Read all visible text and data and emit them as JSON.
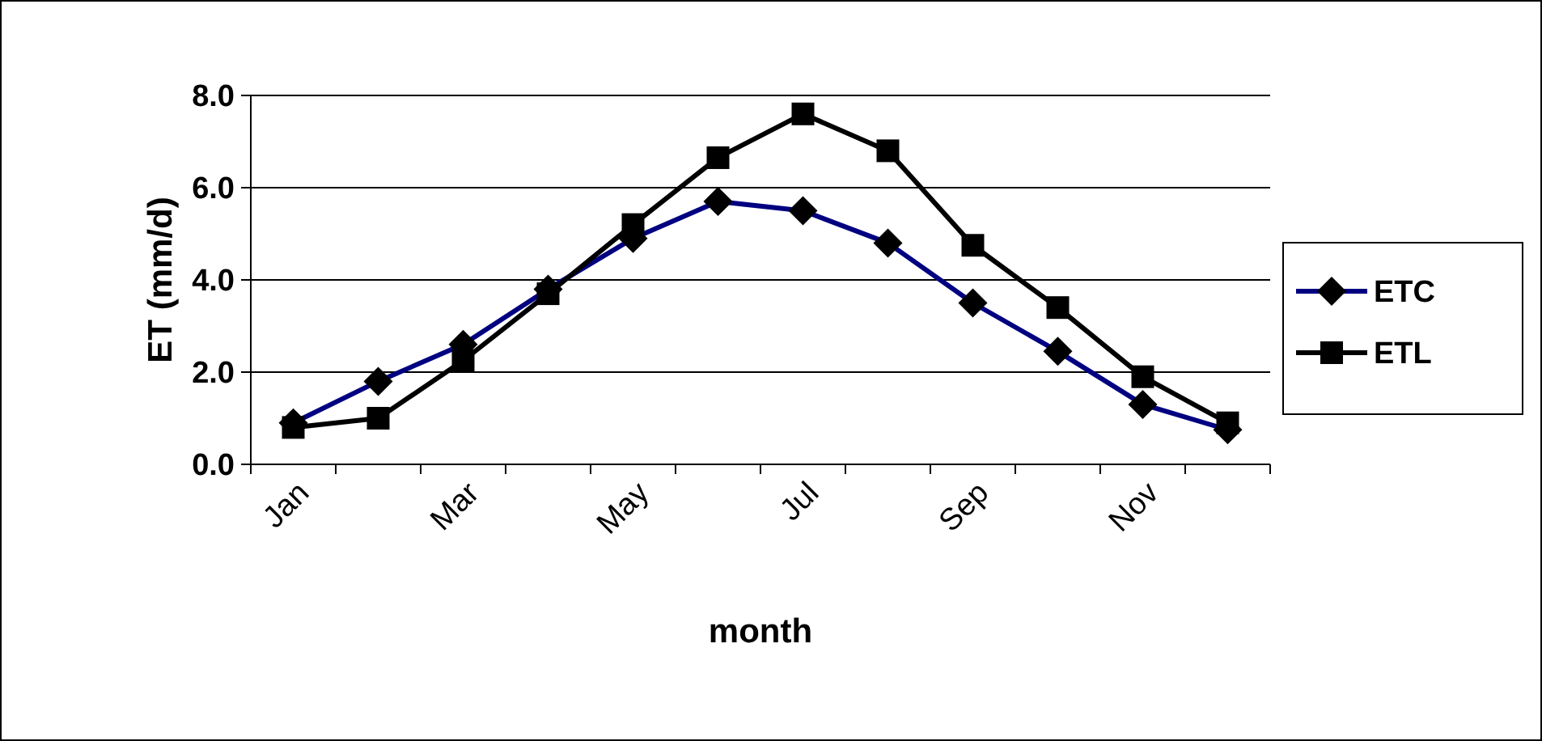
{
  "chart_data": {
    "type": "line",
    "xlabel": "month",
    "ylabel": "ET (mm/d)",
    "categories": [
      "Jan",
      null,
      "Mar",
      null,
      "May",
      null,
      "Jul",
      null,
      "Sep",
      null,
      "Nov",
      null
    ],
    "series": [
      {
        "name": "ETC",
        "color": "#000080",
        "marker": "diamond",
        "values": [
          0.9,
          1.8,
          2.6,
          3.8,
          4.9,
          5.7,
          5.5,
          4.8,
          3.5,
          2.45,
          1.3,
          0.75
        ]
      },
      {
        "name": "ETL",
        "color": "#000000",
        "marker": "square",
        "values": [
          0.8,
          1.0,
          2.25,
          3.7,
          5.2,
          6.65,
          7.6,
          6.8,
          4.75,
          3.4,
          1.9,
          0.9
        ]
      }
    ],
    "ylim": [
      0,
      8
    ],
    "yticks": [
      {
        "value": 0,
        "label": "0.0"
      },
      {
        "value": 2,
        "label": "2.0"
      },
      {
        "value": 4,
        "label": "4.0"
      },
      {
        "value": 6,
        "label": "6.0"
      },
      {
        "value": 8,
        "label": "8.0"
      }
    ],
    "grid": "y",
    "legend": "right",
    "line_style": "solid"
  }
}
